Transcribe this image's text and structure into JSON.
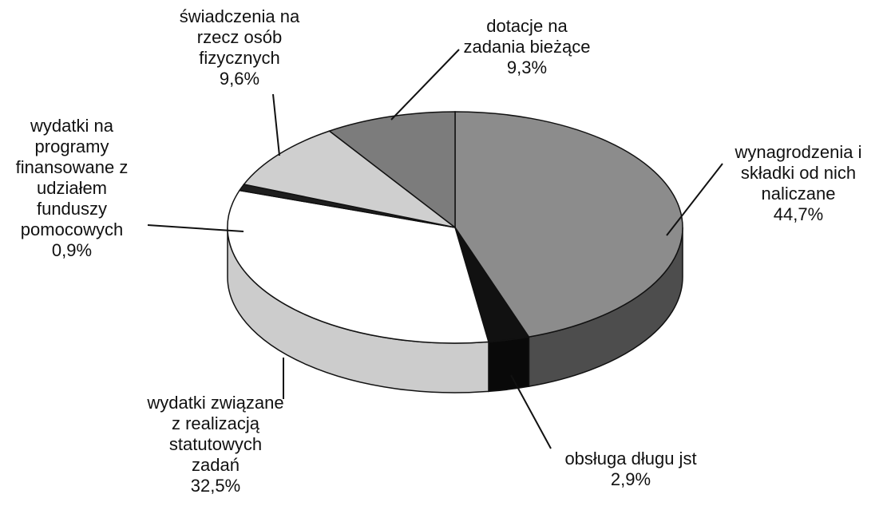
{
  "chart_data": {
    "type": "pie",
    "categories": [
      "wynagrodzenia i składki od nich naliczane",
      "obsługa długu jst",
      "wydatki związane z realizacją statutowych zadań",
      "wydatki na programy finansowane z udziałem funduszy pomocowych",
      "świadczenia na rzecz osób fizycznych",
      "dotacje na zadania bieżące"
    ],
    "values": [
      44.7,
      2.9,
      32.5,
      0.9,
      9.6,
      9.3
    ],
    "value_labels": [
      "44,7%",
      "2,9%",
      "32,5%",
      "0,9%",
      "9,6%",
      "9,3%"
    ],
    "colors": [
      "#8c8c8c",
      "#111111",
      "#ffffff",
      "#1e1e1e",
      "#cfcfcf",
      "#7c7c7c"
    ]
  }
}
